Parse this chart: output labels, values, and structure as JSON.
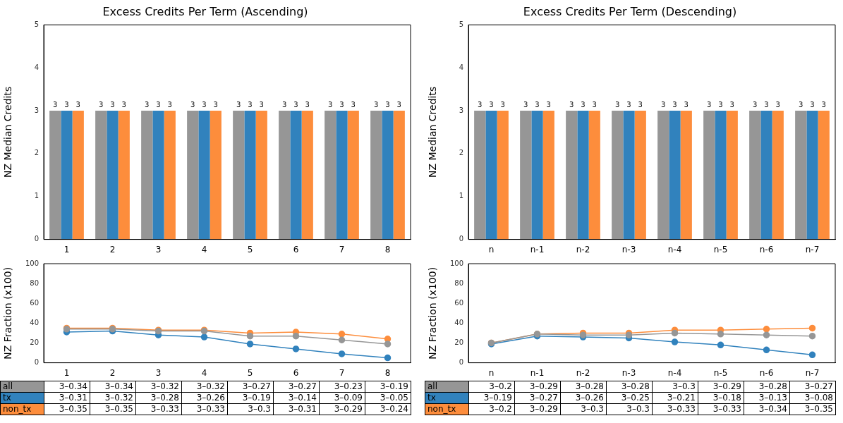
{
  "chart_data": [
    {
      "type": "bar",
      "title": "Excess Credits Per Term (Ascending)",
      "ylabel": "NZ Median Credits",
      "categories": [
        "1",
        "2",
        "3",
        "4",
        "5",
        "6",
        "7",
        "8"
      ],
      "series": [
        {
          "color": "#969696",
          "values": [
            3,
            3,
            3,
            3,
            3,
            3,
            3,
            3
          ]
        },
        {
          "color": "#3182bd",
          "values": [
            3,
            3,
            3,
            3,
            3,
            3,
            3,
            3
          ]
        },
        {
          "color": "#fd8d3c",
          "values": [
            3,
            3,
            3,
            3,
            3,
            3,
            3,
            3
          ]
        }
      ],
      "ylim": [
        0,
        5
      ],
      "yticks": [
        0,
        1,
        2,
        3,
        4,
        5
      ],
      "data_labels": true,
      "grid": false
    },
    {
      "type": "bar",
      "title": "Excess Credits Per Term (Descending)",
      "ylabel": "NZ Median Credits",
      "categories": [
        "n",
        "n-1",
        "n-2",
        "n-3",
        "n-4",
        "n-5",
        "n-6",
        "n-7"
      ],
      "series": [
        {
          "color": "#969696",
          "values": [
            3,
            3,
            3,
            3,
            3,
            3,
            3,
            3
          ]
        },
        {
          "color": "#3182bd",
          "values": [
            3,
            3,
            3,
            3,
            3,
            3,
            3,
            3
          ]
        },
        {
          "color": "#fd8d3c",
          "values": [
            3,
            3,
            3,
            3,
            3,
            3,
            3,
            3
          ]
        }
      ],
      "ylim": [
        0,
        5
      ],
      "yticks": [
        0,
        1,
        2,
        3,
        4,
        5
      ],
      "data_labels": true,
      "grid": false
    },
    {
      "type": "line",
      "ylabel": "NZ Fraction (x100)",
      "categories": [
        "1",
        "2",
        "3",
        "4",
        "5",
        "6",
        "7",
        "8"
      ],
      "series": [
        {
          "name": "all",
          "color": "#969696",
          "values": [
            34,
            34,
            32,
            32,
            27,
            27,
            23,
            19
          ],
          "value_labels": [
            "3–0.34",
            "3–0.34",
            "3–0.32",
            "3–0.32",
            "3–0.27",
            "3–0.27",
            "3–0.23",
            "3–0.19"
          ]
        },
        {
          "name": "tx",
          "color": "#3182bd",
          "values": [
            31,
            32,
            28,
            26,
            19,
            14,
            9,
            5
          ],
          "value_labels": [
            "3–0.31",
            "3–0.32",
            "3–0.28",
            "3–0.26",
            "3–0.19",
            "3–0.14",
            "3–0.09",
            "3–0.05"
          ]
        },
        {
          "name": "non_tx",
          "color": "#fd8d3c",
          "values": [
            35,
            35,
            33,
            33,
            30,
            31,
            29,
            24
          ],
          "value_labels": [
            "3–0.35",
            "3–0.35",
            "3–0.33",
            "3–0.33",
            "3–0.3",
            "3–0.31",
            "3–0.29",
            "3–0.24"
          ]
        }
      ],
      "ylim": [
        0,
        100
      ],
      "yticks": [
        0,
        20,
        40,
        60,
        80,
        100
      ],
      "marker": "circle",
      "grid": false,
      "legend": "bottom"
    },
    {
      "type": "line",
      "ylabel": "NZ Fraction (x100)",
      "categories": [
        "n",
        "n-1",
        "n-2",
        "n-3",
        "n-4",
        "n-5",
        "n-6",
        "n-7"
      ],
      "series": [
        {
          "name": "all",
          "color": "#969696",
          "values": [
            20,
            29,
            28,
            28,
            30,
            29,
            28,
            27
          ],
          "value_labels": [
            "3–0.2",
            "3–0.29",
            "3–0.28",
            "3–0.28",
            "3–0.3",
            "3–0.29",
            "3–0.28",
            "3–0.27"
          ]
        },
        {
          "name": "tx",
          "color": "#3182bd",
          "values": [
            19,
            27,
            26,
            25,
            21,
            18,
            13,
            8
          ],
          "value_labels": [
            "3–0.19",
            "3–0.27",
            "3–0.26",
            "3–0.25",
            "3–0.21",
            "3–0.18",
            "3–0.13",
            "3–0.08"
          ]
        },
        {
          "name": "non_tx",
          "color": "#fd8d3c",
          "values": [
            20,
            29,
            30,
            30,
            33,
            33,
            34,
            35
          ],
          "value_labels": [
            "3–0.2",
            "3–0.29",
            "3–0.3",
            "3–0.3",
            "3–0.33",
            "3–0.33",
            "3–0.34",
            "3–0.35"
          ]
        }
      ],
      "ylim": [
        0,
        100
      ],
      "yticks": [
        0,
        20,
        40,
        60,
        80,
        100
      ],
      "marker": "circle",
      "grid": false,
      "legend": "bottom"
    }
  ]
}
